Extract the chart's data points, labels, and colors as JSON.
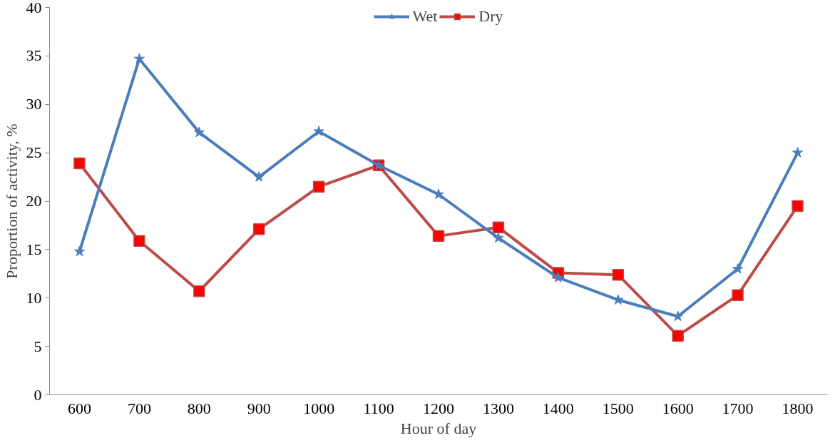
{
  "chart_data": {
    "type": "line",
    "xlabel": "Hour of day",
    "ylabel": "Proportion of activity, %",
    "categories": [
      "600",
      "700",
      "800",
      "900",
      "1000",
      "1100",
      "1200",
      "1300",
      "1400",
      "1500",
      "1600",
      "1700",
      "1800"
    ],
    "series": [
      {
        "name": "Wet",
        "color": "#4a7ebb",
        "marker": "star",
        "values": [
          14.8,
          34.7,
          27.1,
          22.5,
          27.2,
          23.7,
          20.7,
          16.2,
          12.1,
          9.8,
          8.1,
          13.0,
          25.0
        ]
      },
      {
        "name": "Dry",
        "color": "#be4b48",
        "marker": "square",
        "values": [
          23.9,
          15.9,
          10.7,
          17.1,
          21.5,
          23.7,
          16.4,
          17.3,
          12.6,
          12.4,
          6.1,
          10.3,
          19.5
        ]
      }
    ],
    "ylim": [
      0,
      40
    ],
    "yticks": [
      0,
      5,
      10,
      15,
      20,
      25,
      30,
      35,
      40
    ],
    "grid": false,
    "legend": "top",
    "line_style": "solid"
  }
}
